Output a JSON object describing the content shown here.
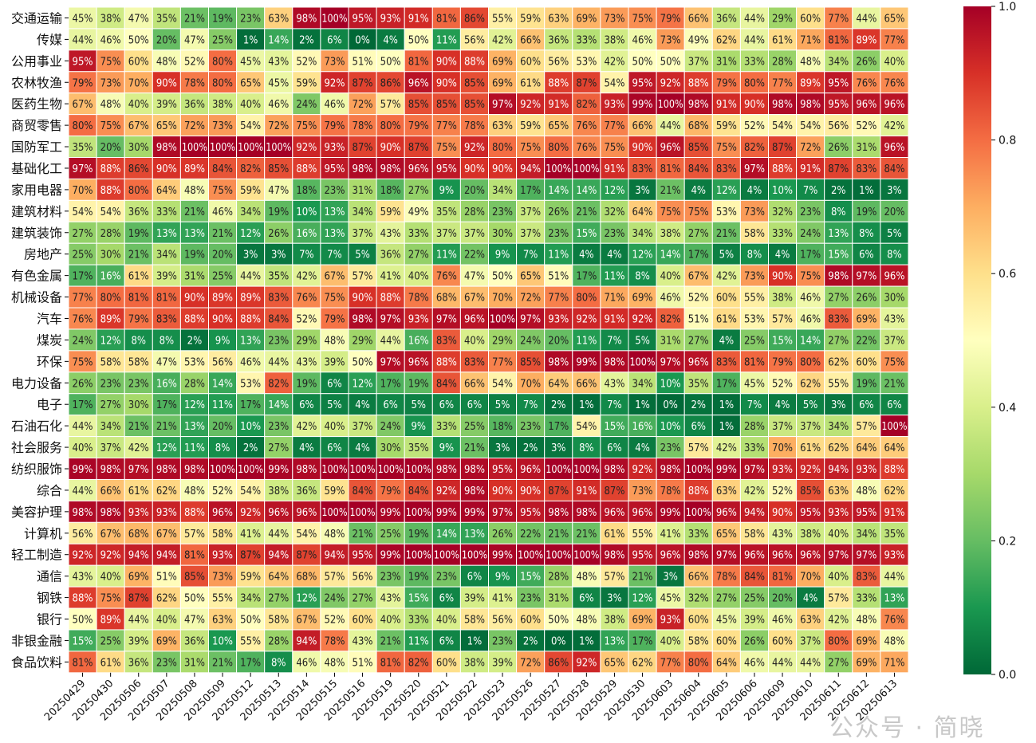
{
  "chart_data": {
    "type": "heatmap",
    "title": "",
    "xlabel": "",
    "ylabel": "",
    "value_format": "percent",
    "colormap": "RdYlGn_r",
    "colorbar": {
      "range": [
        0,
        1
      ],
      "ticks": [
        "0.0",
        "0.2",
        "0.4",
        "0.6",
        "0.8",
        "1.0"
      ]
    },
    "x_categories": [
      "20250429",
      "20250430",
      "20250506",
      "20250507",
      "20250508",
      "20250509",
      "20250512",
      "20250513",
      "20250514",
      "20250515",
      "20250516",
      "20250519",
      "20250520",
      "20250521",
      "20250522",
      "20250523",
      "20250526",
      "20250527",
      "20250528",
      "20250529",
      "20250530",
      "20250603",
      "20250604",
      "20250605",
      "20250606",
      "20250609",
      "20250610",
      "20250611",
      "20250612",
      "20250613"
    ],
    "y_categories": [
      "交通运输",
      "传媒",
      "公用事业",
      "农林牧渔",
      "医药生物",
      "商贸零售",
      "国防军工",
      "基础化工",
      "家用电器",
      "建筑材料",
      "建筑装饰",
      "房地产",
      "有色金属",
      "机械设备",
      "汽车",
      "煤炭",
      "环保",
      "电力设备",
      "电子",
      "石油石化",
      "社会服务",
      "纺织服饰",
      "综合",
      "美容护理",
      "计算机",
      "轻工制造",
      "通信",
      "钢铁",
      "银行",
      "非银金融",
      "食品饮料"
    ],
    "values": [
      [
        45,
        38,
        47,
        35,
        21,
        19,
        23,
        63,
        98,
        100,
        95,
        93,
        91,
        81,
        86,
        55,
        59,
        63,
        69,
        73,
        75,
        79,
        66,
        36,
        44,
        29,
        60,
        77,
        44,
        65
      ],
      [
        44,
        46,
        50,
        20,
        47,
        25,
        1,
        14,
        2,
        6,
        0,
        4,
        50,
        11,
        56,
        42,
        66,
        36,
        33,
        38,
        46,
        73,
        49,
        62,
        44,
        61,
        71,
        81,
        89,
        77
      ],
      [
        95,
        75,
        60,
        48,
        52,
        80,
        45,
        43,
        52,
        73,
        51,
        50,
        81,
        90,
        88,
        69,
        60,
        56,
        53,
        42,
        50,
        50,
        37,
        31,
        33,
        28,
        48,
        34,
        26,
        40
      ],
      [
        79,
        73,
        70,
        90,
        78,
        80,
        65,
        45,
        59,
        92,
        87,
        86,
        96,
        90,
        85,
        69,
        61,
        88,
        87,
        54,
        95,
        92,
        88,
        79,
        80,
        77,
        89,
        95,
        76,
        76
      ],
      [
        67,
        48,
        40,
        39,
        36,
        38,
        40,
        46,
        24,
        46,
        72,
        57,
        85,
        85,
        85,
        97,
        92,
        91,
        82,
        93,
        99,
        100,
        98,
        91,
        90,
        98,
        98,
        95,
        96,
        96
      ],
      [
        80,
        75,
        67,
        65,
        72,
        73,
        54,
        72,
        75,
        79,
        78,
        80,
        79,
        77,
        78,
        63,
        59,
        65,
        76,
        77,
        66,
        44,
        68,
        59,
        52,
        54,
        54,
        56,
        52,
        42
      ],
      [
        35,
        20,
        30,
        98,
        100,
        100,
        100,
        100,
        92,
        93,
        87,
        90,
        87,
        75,
        92,
        80,
        75,
        80,
        76,
        75,
        90,
        96,
        85,
        75,
        82,
        87,
        72,
        26,
        31,
        96
      ],
      [
        97,
        88,
        86,
        90,
        89,
        84,
        82,
        85,
        88,
        95,
        98,
        98,
        96,
        95,
        90,
        90,
        94,
        100,
        100,
        91,
        83,
        81,
        84,
        83,
        97,
        88,
        91,
        87,
        83,
        84
      ],
      [
        70,
        88,
        80,
        64,
        48,
        75,
        59,
        47,
        18,
        23,
        31,
        18,
        27,
        9,
        20,
        34,
        17,
        14,
        14,
        12,
        3,
        21,
        4,
        12,
        4,
        10,
        7,
        2,
        1,
        3
      ],
      [
        54,
        54,
        36,
        33,
        21,
        46,
        34,
        19,
        10,
        13,
        34,
        59,
        49,
        35,
        28,
        23,
        37,
        26,
        21,
        32,
        64,
        75,
        75,
        53,
        73,
        32,
        23,
        8,
        19,
        20
      ],
      [
        27,
        28,
        19,
        13,
        13,
        21,
        12,
        26,
        16,
        13,
        37,
        43,
        33,
        37,
        37,
        30,
        37,
        23,
        15,
        23,
        34,
        38,
        27,
        21,
        58,
        33,
        24,
        13,
        8,
        5
      ],
      [
        25,
        30,
        21,
        34,
        19,
        20,
        3,
        3,
        7,
        7,
        5,
        36,
        27,
        11,
        22,
        9,
        7,
        11,
        4,
        4,
        12,
        14,
        17,
        5,
        8,
        4,
        17,
        15,
        6,
        8
      ],
      [
        17,
        16,
        61,
        39,
        31,
        25,
        44,
        35,
        42,
        67,
        57,
        41,
        40,
        76,
        47,
        50,
        65,
        51,
        17,
        11,
        8,
        40,
        67,
        42,
        73,
        90,
        75,
        98,
        97,
        96
      ],
      [
        77,
        80,
        81,
        81,
        90,
        89,
        89,
        83,
        76,
        75,
        90,
        88,
        78,
        68,
        67,
        70,
        72,
        77,
        80,
        71,
        69,
        46,
        52,
        60,
        55,
        38,
        46,
        27,
        26,
        30
      ],
      [
        76,
        89,
        79,
        83,
        88,
        90,
        88,
        84,
        52,
        79,
        98,
        97,
        93,
        97,
        96,
        100,
        97,
        93,
        92,
        91,
        92,
        82,
        51,
        61,
        53,
        57,
        46,
        83,
        69,
        43
      ],
      [
        24,
        12,
        8,
        8,
        2,
        9,
        13,
        23,
        29,
        48,
        29,
        44,
        16,
        83,
        40,
        29,
        24,
        20,
        11,
        7,
        5,
        31,
        27,
        4,
        25,
        15,
        14,
        27,
        22,
        37
      ],
      [
        75,
        58,
        58,
        47,
        53,
        56,
        46,
        44,
        43,
        39,
        50,
        97,
        96,
        88,
        83,
        77,
        85,
        98,
        99,
        98,
        100,
        97,
        96,
        83,
        81,
        79,
        80,
        62,
        60,
        75
      ],
      [
        26,
        23,
        23,
        16,
        28,
        14,
        53,
        82,
        19,
        6,
        12,
        17,
        19,
        84,
        66,
        54,
        70,
        64,
        66,
        43,
        34,
        10,
        35,
        17,
        45,
        52,
        62,
        55,
        19,
        21
      ],
      [
        17,
        27,
        30,
        17,
        12,
        11,
        17,
        14,
        6,
        5,
        4,
        6,
        5,
        6,
        6,
        5,
        7,
        2,
        1,
        7,
        1,
        0,
        2,
        1,
        7,
        4,
        5,
        3,
        6,
        6
      ],
      [
        44,
        34,
        21,
        21,
        13,
        20,
        10,
        23,
        42,
        40,
        37,
        24,
        9,
        33,
        25,
        18,
        23,
        17,
        54,
        15,
        16,
        10,
        6,
        1,
        28,
        37,
        37,
        34,
        57,
        100
      ],
      [
        40,
        37,
        42,
        12,
        11,
        8,
        2,
        27,
        4,
        6,
        4,
        30,
        35,
        9,
        21,
        3,
        2,
        3,
        8,
        6,
        4,
        23,
        57,
        42,
        33,
        70,
        61,
        62,
        64,
        64
      ],
      [
        99,
        98,
        97,
        98,
        98,
        100,
        100,
        99,
        98,
        100,
        100,
        100,
        100,
        98,
        98,
        95,
        96,
        100,
        100,
        98,
        92,
        98,
        100,
        99,
        97,
        93,
        92,
        94,
        93,
        88
      ],
      [
        44,
        66,
        61,
        62,
        48,
        52,
        54,
        38,
        36,
        59,
        84,
        79,
        84,
        92,
        98,
        90,
        90,
        87,
        91,
        87,
        73,
        78,
        88,
        63,
        42,
        52,
        85,
        63,
        48,
        62
      ],
      [
        98,
        98,
        93,
        93,
        88,
        96,
        92,
        96,
        96,
        100,
        100,
        99,
        100,
        99,
        99,
        97,
        95,
        98,
        98,
        96,
        96,
        99,
        100,
        96,
        94,
        90,
        95,
        93,
        95,
        91
      ],
      [
        56,
        67,
        68,
        67,
        57,
        58,
        41,
        44,
        54,
        48,
        21,
        25,
        19,
        14,
        13,
        26,
        22,
        21,
        21,
        61,
        55,
        41,
        33,
        65,
        58,
        43,
        38,
        40,
        34,
        35
      ],
      [
        92,
        92,
        94,
        94,
        81,
        93,
        87,
        94,
        87,
        94,
        95,
        99,
        100,
        100,
        100,
        99,
        100,
        100,
        100,
        98,
        95,
        96,
        98,
        97,
        96,
        96,
        96,
        97,
        97,
        93
      ],
      [
        43,
        40,
        69,
        51,
        85,
        73,
        59,
        64,
        68,
        57,
        56,
        23,
        19,
        23,
        6,
        9,
        15,
        28,
        48,
        57,
        21,
        3,
        66,
        78,
        84,
        81,
        70,
        40,
        83,
        44
      ],
      [
        88,
        75,
        87,
        62,
        50,
        55,
        34,
        27,
        12,
        24,
        27,
        43,
        15,
        6,
        39,
        41,
        23,
        31,
        6,
        3,
        12,
        45,
        32,
        27,
        25,
        20,
        4,
        57,
        33,
        13
      ],
      [
        50,
        89,
        44,
        40,
        47,
        63,
        50,
        58,
        67,
        52,
        60,
        40,
        33,
        40,
        58,
        56,
        60,
        50,
        48,
        38,
        69,
        93,
        60,
        45,
        39,
        46,
        63,
        42,
        48,
        76
      ],
      [
        15,
        25,
        39,
        69,
        36,
        10,
        55,
        28,
        94,
        78,
        43,
        21,
        11,
        6,
        1,
        23,
        2,
        0,
        1,
        13,
        17,
        40,
        58,
        60,
        26,
        60,
        37,
        80,
        69,
        48
      ],
      [
        81,
        61,
        36,
        23,
        31,
        21,
        17,
        8,
        46,
        48,
        51,
        81,
        82,
        60,
        38,
        39,
        72,
        86,
        92,
        65,
        62,
        77,
        80,
        64,
        46,
        44,
        44,
        27,
        69,
        71
      ]
    ]
  },
  "watermark": "公众号 · 简晓"
}
